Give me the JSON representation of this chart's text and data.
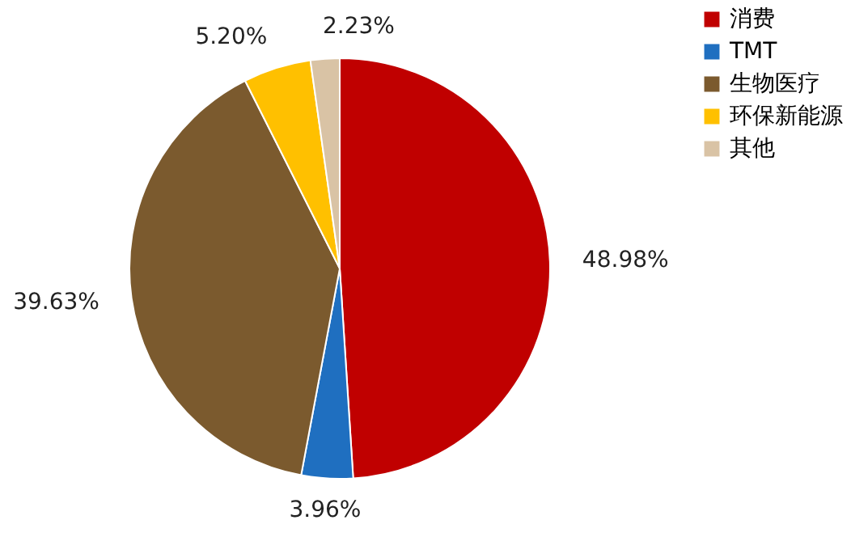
{
  "chart_data": {
    "type": "pie",
    "categories": [
      "消费",
      "TMT",
      "生物医疗",
      "环保新能源",
      "其他"
    ],
    "values": [
      48.98,
      3.96,
      39.63,
      5.2,
      2.23
    ],
    "colors": [
      "#c00000",
      "#1f6fc0",
      "#7b5a2e",
      "#ffc000",
      "#d9c3a5"
    ],
    "value_labels": [
      "48.98%",
      "3.96%",
      "39.63%",
      "5.20%",
      "2.23%"
    ],
    "legend": "right"
  }
}
